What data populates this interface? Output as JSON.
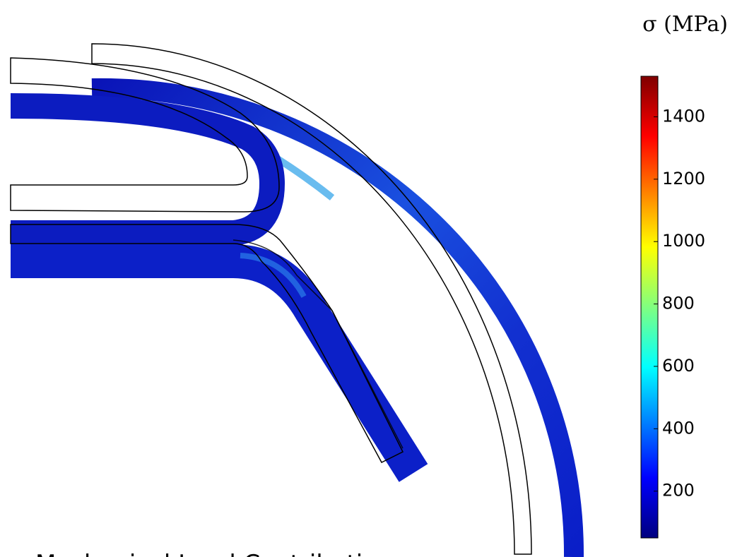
{
  "colorbar": {
    "label": "σ (MPa)",
    "range": [
      50,
      1530
    ],
    "ticks": [
      200,
      400,
      600,
      800,
      1000,
      1200,
      1400
    ]
  },
  "caption": "Mechanical Load Contribution"
}
